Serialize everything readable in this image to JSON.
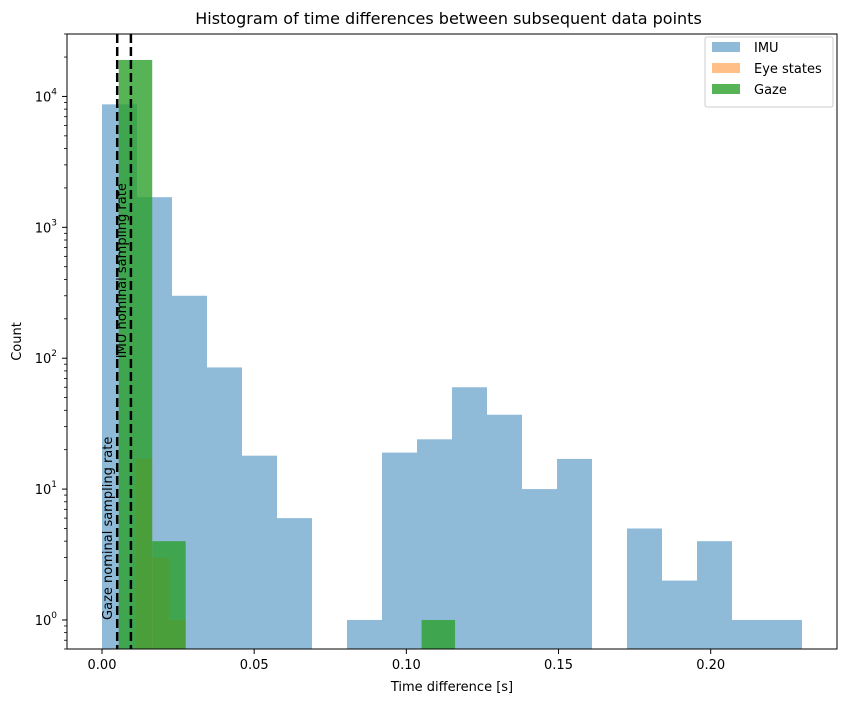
{
  "chart_data": {
    "type": "bar",
    "title": "Histogram of time differences between subsequent data points",
    "xlabel": "Time difference [s]",
    "ylabel": "Count",
    "xlim": [
      -0.0115,
      0.2415
    ],
    "ylim": [
      0.6,
      30000
    ],
    "yscale": "log",
    "grid": false,
    "legend_position": "top-right",
    "x_ticks": [
      0.0,
      0.05,
      0.1,
      0.15,
      0.2
    ],
    "x_tick_labels": [
      "0.00",
      "0.05",
      "0.10",
      "0.15",
      "0.20"
    ],
    "y_ticks": [
      1,
      10,
      100,
      1000,
      10000
    ],
    "y_tick_labels": [
      "10^0",
      "10^1",
      "10^2",
      "10^3",
      "10^4"
    ],
    "series": [
      {
        "name": "IMU",
        "color": "#1f77b4",
        "opacity": 0.5,
        "bins": [
          {
            "x0": 0.0,
            "x1": 0.0115,
            "count": 8700
          },
          {
            "x0": 0.0115,
            "x1": 0.023,
            "count": 1700
          },
          {
            "x0": 0.023,
            "x1": 0.0345,
            "count": 300
          },
          {
            "x0": 0.0345,
            "x1": 0.046,
            "count": 85
          },
          {
            "x0": 0.046,
            "x1": 0.0575,
            "count": 18
          },
          {
            "x0": 0.0575,
            "x1": 0.069,
            "count": 6
          },
          {
            "x0": 0.069,
            "x1": 0.0805,
            "count": 0
          },
          {
            "x0": 0.0805,
            "x1": 0.092,
            "count": 1
          },
          {
            "x0": 0.092,
            "x1": 0.1035,
            "count": 19
          },
          {
            "x0": 0.1035,
            "x1": 0.115,
            "count": 24
          },
          {
            "x0": 0.115,
            "x1": 0.1265,
            "count": 60
          },
          {
            "x0": 0.1265,
            "x1": 0.138,
            "count": 37
          },
          {
            "x0": 0.138,
            "x1": 0.1495,
            "count": 10
          },
          {
            "x0": 0.1495,
            "x1": 0.161,
            "count": 17
          },
          {
            "x0": 0.161,
            "x1": 0.1725,
            "count": 0
          },
          {
            "x0": 0.1725,
            "x1": 0.184,
            "count": 5
          },
          {
            "x0": 0.184,
            "x1": 0.1955,
            "count": 2
          },
          {
            "x0": 0.1955,
            "x1": 0.207,
            "count": 4
          },
          {
            "x0": 0.207,
            "x1": 0.2185,
            "count": 1
          },
          {
            "x0": 0.2185,
            "x1": 0.23,
            "count": 1
          }
        ]
      },
      {
        "name": "Eye states",
        "color": "#ff7f0e",
        "opacity": 0.5,
        "bins": [
          {
            "x0": 0.0,
            "x1": 0.0055,
            "count": 0
          },
          {
            "x0": 0.0055,
            "x1": 0.011,
            "count": 0
          },
          {
            "x0": 0.011,
            "x1": 0.0165,
            "count": 17
          },
          {
            "x0": 0.0165,
            "x1": 0.022,
            "count": 3
          },
          {
            "x0": 0.022,
            "x1": 0.0275,
            "count": 1
          }
        ]
      },
      {
        "name": "Gaze",
        "color": "#2ca02c",
        "opacity": 0.8,
        "bins": [
          {
            "x0": 0.0055,
            "x1": 0.0165,
            "count": 19000
          },
          {
            "x0": 0.0165,
            "x1": 0.0275,
            "count": 4
          },
          {
            "x0": 0.105,
            "x1": 0.116,
            "count": 1
          }
        ]
      }
    ],
    "reference_lines": [
      {
        "x": 0.005,
        "label": "Gaze nominal sampling rate",
        "label_y": 1
      },
      {
        "x": 0.0095,
        "label": "IMU nominal sampling rate",
        "label_y": 100
      }
    ]
  }
}
